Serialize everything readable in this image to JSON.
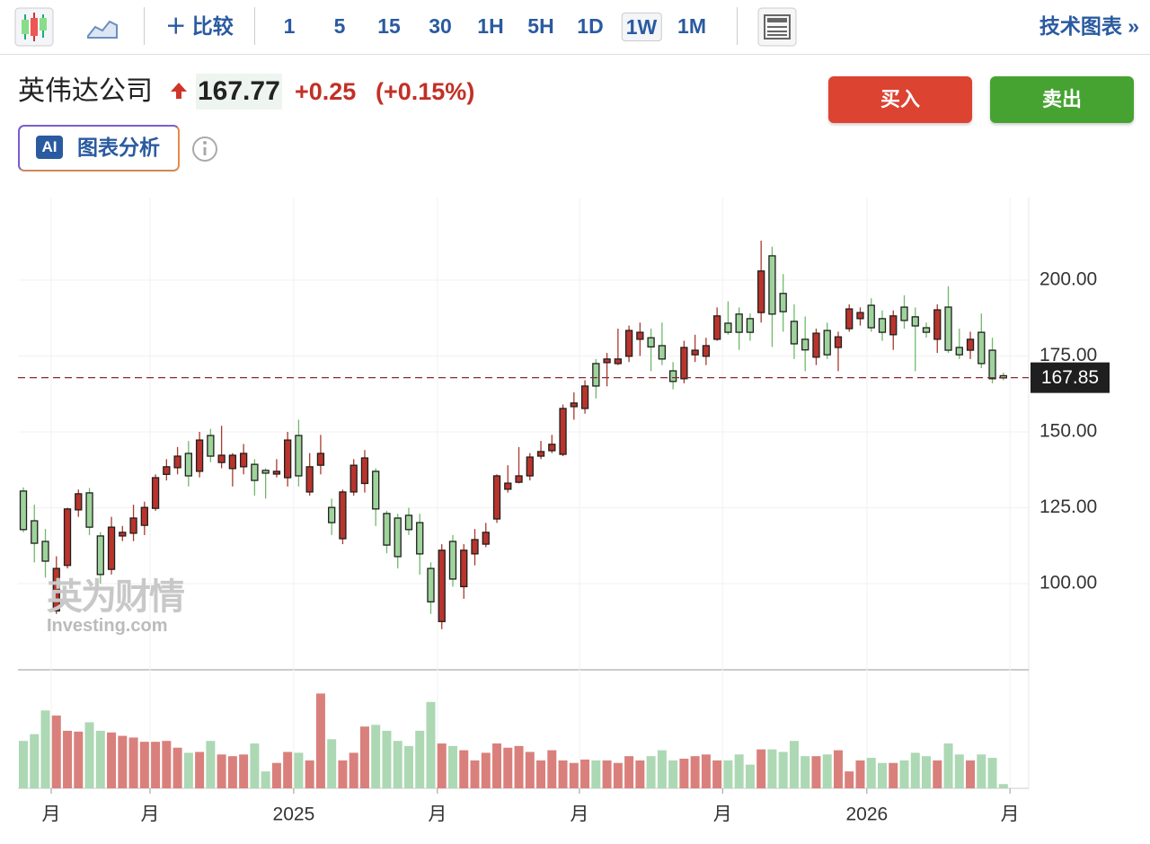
{
  "toolbar": {
    "compare": "比较",
    "intervals": [
      "1",
      "5",
      "15",
      "30",
      "1H",
      "5H",
      "1D",
      "1W",
      "1M"
    ],
    "active_interval": "1W",
    "tech_chart": "技术图表 »"
  },
  "header": {
    "name": "英伟达公司",
    "price": "167.77",
    "change": "+0.25",
    "change_pct": "(+0.15%)",
    "buy": "买入",
    "sell": "卖出",
    "ai_badge": "AI",
    "ai_label": "图表分析"
  },
  "watermark": {
    "cn": "英为财情",
    "en": "Investing.com"
  },
  "chart_data": {
    "type": "candlestick",
    "up_color": "#b8342c",
    "down_color": "#9ed39b",
    "up_volume_color": "#d9807c",
    "down_volume_color": "#acd8b4",
    "open": [
      130.5,
      120.7,
      113.9,
      91,
      106,
      124.3,
      129.9,
      115.7,
      104.7,
      115.7,
      116.6,
      119.2,
      124.8,
      136,
      138.2,
      142.9,
      137,
      148.8,
      139.9,
      137.9,
      138.5,
      139.3,
      137.3,
      136.1,
      134.9,
      148.8,
      130.2,
      139,
      125.1,
      114.8,
      130.2,
      133,
      137,
      123.1,
      121.6,
      122.5,
      120.1,
      105,
      87.5,
      113.9,
      99,
      109.8,
      113,
      121.3,
      131.1,
      133.4,
      135.5,
      142,
      143.8,
      142.6,
      158.3,
      157.7,
      172.5,
      172.8,
      172.5,
      174.9,
      180.5,
      181,
      178.4,
      170.1,
      167.5,
      175.4,
      174.9,
      180.5,
      185.8,
      188.8,
      187.3,
      189.3,
      208,
      195.6,
      186.4,
      180.5,
      174.6,
      183.4,
      177.8,
      184,
      187.3,
      191.7,
      187.3,
      182,
      191.1,
      187.9,
      184.3,
      180.5,
      191.1,
      177.8,
      176.9,
      182.8,
      176.9,
      168.5
    ],
    "high": [
      131.7,
      126,
      118,
      109,
      125,
      131,
      131.5,
      117,
      122,
      119,
      126,
      127,
      136,
      141,
      145,
      147,
      150,
      151,
      152,
      143,
      146,
      141,
      138,
      141,
      150,
      154,
      143,
      149,
      128,
      131,
      141,
      144,
      138,
      124,
      123,
      125,
      123,
      107,
      113,
      116,
      113,
      118,
      120,
      136,
      139,
      145,
      143,
      147,
      149,
      159,
      163,
      167,
      174,
      176,
      184,
      185,
      186,
      184,
      186,
      173,
      180,
      182,
      181,
      191,
      193,
      191,
      189,
      213,
      211,
      202,
      192,
      188,
      184,
      186,
      183,
      192,
      191,
      194,
      190,
      190,
      195,
      191,
      186,
      192,
      198,
      184,
      183,
      189,
      181,
      169.5
    ],
    "low": [
      116.9,
      107,
      102,
      90,
      105,
      122,
      116,
      100,
      103,
      114,
      114,
      116,
      124,
      134,
      136,
      132,
      135,
      140,
      138,
      132,
      136,
      129,
      128,
      135,
      132,
      132,
      129,
      136,
      116,
      113,
      129,
      130,
      119,
      110,
      105,
      116,
      103,
      90,
      85,
      99,
      95,
      106,
      112,
      120,
      130,
      133,
      134,
      141,
      143,
      142,
      154,
      156,
      161,
      165,
      172,
      173,
      175,
      170,
      172,
      164,
      166,
      173,
      172,
      180,
      182,
      177,
      180,
      186,
      178,
      183,
      174,
      170,
      172,
      174,
      170,
      183,
      185,
      183,
      180,
      177,
      184,
      170,
      181,
      176,
      176,
      174,
      174,
      171,
      166,
      167
    ],
    "close": [
      117.8,
      113.3,
      107.4,
      105,
      124.6,
      129.6,
      118.6,
      103,
      118.6,
      116.9,
      121.6,
      125.1,
      134.9,
      138.5,
      142,
      135.5,
      147.3,
      142,
      142.3,
      142.3,
      142.9,
      134,
      136.4,
      137,
      147.3,
      135.5,
      138.5,
      142.9,
      120.1,
      130.2,
      139,
      141.4,
      124.6,
      112.7,
      108.9,
      117.8,
      109.8,
      94,
      111,
      101.5,
      111,
      114.5,
      116.9,
      135.5,
      133.1,
      135.5,
      141.7,
      143.5,
      145.9,
      157.7,
      159.5,
      165.1,
      165.1,
      174,
      174,
      183.4,
      182.8,
      178,
      174,
      166.6,
      177.8,
      176.9,
      178.4,
      188.2,
      182.8,
      182.8,
      182.8,
      203,
      188.8,
      189.6,
      179,
      177,
      182.5,
      175.4,
      181.3,
      190.5,
      189.3,
      184.3,
      182.8,
      188.2,
      186.7,
      184.9,
      182.8,
      190.2,
      176.9,
      175.4,
      180.5,
      172.5,
      167.5,
      167.77
    ],
    "volume": [
      56,
      64,
      92,
      86,
      68,
      67,
      78,
      68,
      66,
      62,
      60,
      55,
      55,
      56,
      48,
      42,
      43,
      56,
      40,
      38,
      40,
      53,
      20,
      30,
      43,
      42,
      33,
      112,
      58,
      33,
      42,
      73,
      75,
      68,
      56,
      50,
      68,
      102,
      53,
      50,
      45,
      33,
      42,
      53,
      48,
      50,
      43,
      33,
      45,
      33,
      30,
      34,
      33,
      33,
      30,
      38,
      33,
      38,
      45,
      33,
      35,
      38,
      40,
      33,
      33,
      40,
      28,
      46,
      46,
      43,
      56,
      38,
      38,
      40,
      45,
      20,
      33,
      36,
      30,
      30,
      33,
      42,
      38,
      33,
      53,
      40,
      33,
      40,
      36,
      5
    ],
    "xlim": [
      -0.49,
      91.3
    ],
    "ylim": [
      71.9,
      227.2
    ],
    "volume_ylim": [
      0,
      140
    ],
    "xticks": [
      {
        "value": 2.53,
        "label": "月"
      },
      {
        "value": 11.5,
        "label": "月"
      },
      {
        "value": 24.55,
        "label": "2025"
      },
      {
        "value": 37.6,
        "label": "月"
      },
      {
        "value": 50.5,
        "label": "月"
      },
      {
        "value": 63.5,
        "label": "月"
      },
      {
        "value": 76.6,
        "label": "2026"
      },
      {
        "value": 89.6,
        "label": "月"
      }
    ],
    "yticks": [
      {
        "value": 100,
        "label": "100.00"
      },
      {
        "value": 125,
        "label": "125.00"
      },
      {
        "value": 150,
        "label": "150.00"
      },
      {
        "value": 175,
        "label": "175.00"
      },
      {
        "value": 200,
        "label": "200.00"
      }
    ],
    "price_line": 167.85,
    "grid": true
  }
}
